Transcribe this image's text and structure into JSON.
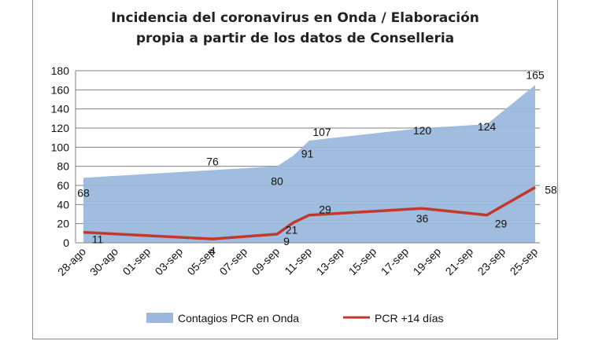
{
  "chart_data": {
    "type": "area",
    "title_lines": [
      "Incidencia del coronavirus en Onda / Elaboración",
      "propia a partir de los datos de Conselleria"
    ],
    "xlabel": "",
    "ylabel": "",
    "ylim": [
      0,
      180
    ],
    "yticks": [
      0,
      20,
      40,
      60,
      80,
      100,
      120,
      140,
      160,
      180
    ],
    "categories": [
      "28-ago",
      "30-ago",
      "01-sep",
      "03-sep",
      "05-sep",
      "07-sep",
      "09-sep",
      "11-sep",
      "13-sep",
      "15-sep",
      "17-sep",
      "19-sep",
      "21-sep",
      "23-sep",
      "25-sep"
    ],
    "grid": true,
    "legend_position": "bottom",
    "series": [
      {
        "name": "Contagios PCR en Onda",
        "kind": "area",
        "color": "#9bb8dc",
        "points": [
          {
            "x": "28-ago",
            "y": 68,
            "label": "68"
          },
          {
            "x": "05-sep",
            "y": 76,
            "label": "76"
          },
          {
            "x": "09-sep",
            "y": 80,
            "label": "80"
          },
          {
            "x": "10-sep",
            "y": 91,
            "label": "91"
          },
          {
            "x": "11-sep",
            "y": 107,
            "label": "107"
          },
          {
            "x": "18-sep",
            "y": 120,
            "label": "120"
          },
          {
            "x": "22-sep",
            "y": 124,
            "label": "124"
          },
          {
            "x": "25-sep",
            "y": 165,
            "label": "165"
          }
        ]
      },
      {
        "name": "PCR +14 días",
        "kind": "line",
        "color": "#c0392b",
        "points": [
          {
            "x": "28-ago",
            "y": 11,
            "label": "11"
          },
          {
            "x": "05-sep",
            "y": 4,
            "label": "4"
          },
          {
            "x": "09-sep",
            "y": 9,
            "label": "9"
          },
          {
            "x": "10-sep",
            "y": 21,
            "label": "21"
          },
          {
            "x": "11-sep",
            "y": 29,
            "label": "29"
          },
          {
            "x": "18-sep",
            "y": 36,
            "label": "36"
          },
          {
            "x": "22-sep",
            "y": 29,
            "label": "29"
          },
          {
            "x": "25-sep",
            "y": 58,
            "label": "58"
          }
        ]
      }
    ]
  }
}
